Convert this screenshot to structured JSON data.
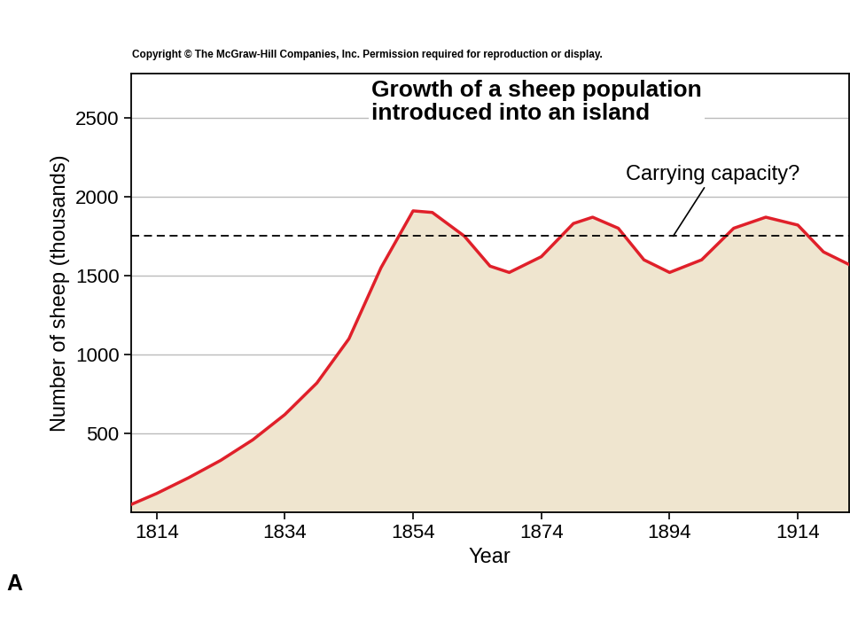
{
  "chart_data": {
    "type": "area",
    "title": "Growth of a sheep population\nintroduced into an island",
    "copyright": "Copyright © The McGraw-Hill Companies, Inc. Permission required for reproduction or display.",
    "panel_label": "A",
    "x_label": "Year",
    "y_label": "Number of sheep (thousands)",
    "x": [
      1810,
      1814,
      1819,
      1824,
      1829,
      1834,
      1839,
      1844,
      1849,
      1854,
      1857,
      1862,
      1866,
      1869,
      1874,
      1879,
      1882,
      1886,
      1890,
      1894,
      1899,
      1904,
      1909,
      1914,
      1918,
      1922
    ],
    "values": [
      50,
      120,
      220,
      330,
      460,
      620,
      820,
      1100,
      1550,
      1910,
      1900,
      1750,
      1560,
      1520,
      1620,
      1830,
      1870,
      1800,
      1600,
      1520,
      1600,
      1800,
      1870,
      1820,
      1650,
      1570
    ],
    "color": "#e0202a",
    "fill_color": "#efe5cf",
    "reference_line": {
      "value": 1750,
      "label": "Carrying capacity?",
      "line_style": "dashed",
      "color": "#000000"
    },
    "xlim": [
      1810,
      1922
    ],
    "xticks": [
      1814,
      1834,
      1854,
      1874,
      1894,
      1914
    ],
    "ylim": [
      0,
      2780
    ],
    "yticks": [
      500,
      1000,
      1500,
      2000,
      2500
    ],
    "grid": true
  }
}
